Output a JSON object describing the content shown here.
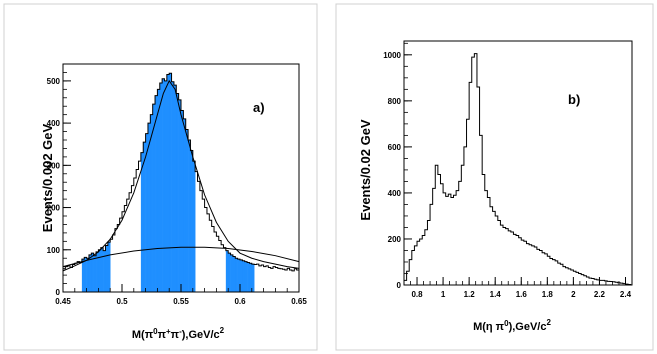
{
  "chart_data": [
    {
      "type": "histogram",
      "panel_label": "a)",
      "ylabel": "Events/0.002 GeV",
      "xlabel_parts": [
        "M(π",
        "0",
        "π",
        "+",
        "π",
        "-",
        "),GeV/c",
        "2"
      ],
      "xlim": [
        0.45,
        0.65
      ],
      "ylim": [
        0,
        540
      ],
      "x_ticks": [
        "0.45",
        "0.5",
        "0.55",
        "0.6",
        "0.65"
      ],
      "y_ticks": [
        "0",
        "100",
        "200",
        "300",
        "400",
        "500"
      ],
      "bin_width": 0.002,
      "bin_start": 0.45,
      "values": [
        55,
        60,
        62,
        58,
        65,
        68,
        72,
        70,
        78,
        82,
        80,
        88,
        92,
        86,
        95,
        100,
        105,
        98,
        110,
        118,
        125,
        135,
        150,
        160,
        175,
        190,
        205,
        220,
        235,
        252,
        270,
        290,
        310,
        330,
        355,
        375,
        400,
        420,
        445,
        465,
        480,
        495,
        505,
        500,
        515,
        518,
        498,
        490,
        470,
        455,
        430,
        410,
        385,
        360,
        335,
        310,
        285,
        262,
        240,
        220,
        200,
        185,
        170,
        155,
        142,
        132,
        122,
        112,
        105,
        98,
        92,
        88,
        84,
        80,
        78,
        76,
        74,
        72,
        70,
        68,
        66,
        65,
        66,
        62,
        64,
        60,
        62,
        58,
        56,
        60,
        58,
        56,
        55,
        54,
        52,
        56,
        52,
        50,
        55,
        52
      ],
      "fit_curve": [
        [
          0.45,
          50
        ],
        [
          0.46,
          62
        ],
        [
          0.47,
          75
        ],
        [
          0.48,
          95
        ],
        [
          0.49,
          125
        ],
        [
          0.5,
          170
        ],
        [
          0.51,
          235
        ],
        [
          0.52,
          320
        ],
        [
          0.53,
          420
        ],
        [
          0.535,
          470
        ],
        [
          0.54,
          500
        ],
        [
          0.545,
          480
        ],
        [
          0.55,
          420
        ],
        [
          0.56,
          320
        ],
        [
          0.57,
          230
        ],
        [
          0.58,
          165
        ],
        [
          0.59,
          120
        ],
        [
          0.6,
          92
        ],
        [
          0.61,
          80
        ],
        [
          0.62,
          72
        ],
        [
          0.63,
          66
        ],
        [
          0.64,
          60
        ],
        [
          0.65,
          56
        ]
      ],
      "background_curve": [
        [
          0.45,
          60
        ],
        [
          0.47,
          75
        ],
        [
          0.49,
          88
        ],
        [
          0.51,
          97
        ],
        [
          0.53,
          103
        ],
        [
          0.55,
          106
        ],
        [
          0.57,
          106
        ],
        [
          0.59,
          103
        ],
        [
          0.61,
          96
        ],
        [
          0.63,
          86
        ],
        [
          0.65,
          72
        ]
      ],
      "shaded_regions": [
        [
          0.466,
          0.49
        ],
        [
          0.516,
          0.562
        ],
        [
          0.588,
          0.612
        ]
      ],
      "colors": {
        "fill": "#1f8fff",
        "line": "#000000"
      }
    },
    {
      "type": "histogram",
      "panel_label": "b)",
      "ylabel": "Events/0.02 GeV",
      "xlabel_parts": [
        "M(η π",
        "0",
        "),GeV/c",
        "2"
      ],
      "xlim": [
        0.7,
        2.45
      ],
      "ylim": [
        0,
        1060
      ],
      "x_ticks": [
        "0.8",
        "1",
        "1.2",
        "1.4",
        "1.6",
        "1.8",
        "2",
        "2.2",
        "2.4"
      ],
      "x_tick_values": [
        0.8,
        1.0,
        1.2,
        1.4,
        1.6,
        1.8,
        2.0,
        2.2,
        2.4
      ],
      "y_ticks": [
        "0",
        "200",
        "400",
        "600",
        "800",
        "1000"
      ],
      "y_tick_values": [
        0,
        200,
        400,
        600,
        800,
        1000
      ],
      "bin_width": 0.02,
      "bin_start": 0.7,
      "values": [
        20,
        60,
        110,
        150,
        170,
        190,
        200,
        215,
        240,
        280,
        350,
        420,
        520,
        480,
        440,
        400,
        385,
        395,
        380,
        390,
        410,
        450,
        520,
        600,
        720,
        880,
        990,
        1005,
        860,
        650,
        480,
        410,
        380,
        340,
        320,
        300,
        280,
        260,
        250,
        245,
        235,
        230,
        220,
        215,
        205,
        195,
        190,
        180,
        175,
        170,
        165,
        155,
        150,
        140,
        135,
        125,
        115,
        110,
        105,
        95,
        90,
        80,
        75,
        70,
        65,
        60,
        55,
        50,
        45,
        40,
        35,
        30,
        28,
        25,
        22,
        20,
        20,
        18,
        16,
        15,
        14,
        12,
        10,
        8,
        6,
        4,
        2,
        0
      ]
    }
  ]
}
